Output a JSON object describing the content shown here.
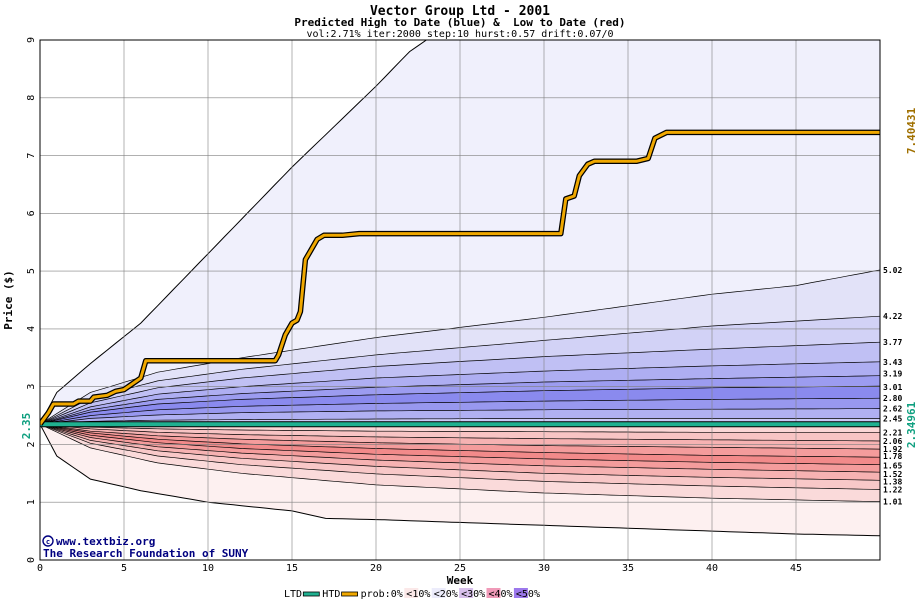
{
  "chart_data": {
    "type": "area",
    "title": "Vector Group Ltd - 2001",
    "subtitle": "Predicted High to Date (blue) &  Low to Date (red)",
    "params": "vol:2.71% iter:2000 step:10 hurst:0.57 drift:0.07/0",
    "xlabel": "Week",
    "ylabel": "Price ($)",
    "xlim": [
      0,
      50
    ],
    "ylim": [
      0,
      9
    ],
    "x_ticks": [
      0,
      5,
      10,
      15,
      20,
      25,
      30,
      35,
      40,
      45
    ],
    "y_ticks": [
      0,
      1,
      2,
      3,
      4,
      5,
      6,
      7,
      8,
      9
    ],
    "grid": true,
    "start_price": 2.35,
    "start_price_label": "2.35",
    "ltd_value_label": "2.34961",
    "htd_value_label": "7.40431",
    "envelope": {
      "upper": [
        [
          0,
          2.35
        ],
        [
          1,
          2.9
        ],
        [
          3,
          3.4
        ],
        [
          6,
          4.1
        ],
        [
          10,
          5.3
        ],
        [
          15,
          6.8
        ],
        [
          20,
          8.2
        ],
        [
          22,
          8.8
        ],
        [
          23,
          9.0
        ]
      ],
      "lower": [
        [
          0,
          2.35
        ],
        [
          1,
          1.8
        ],
        [
          3,
          1.4
        ],
        [
          6,
          1.2
        ],
        [
          10,
          1.0
        ],
        [
          15,
          0.85
        ],
        [
          17,
          0.72
        ],
        [
          20,
          0.7
        ],
        [
          25,
          0.65
        ],
        [
          30,
          0.6
        ],
        [
          35,
          0.55
        ],
        [
          40,
          0.5
        ],
        [
          45,
          0.45
        ],
        [
          50,
          0.42
        ]
      ]
    },
    "high_quantiles": [
      {
        "label": "5.02",
        "values": [
          [
            0,
            2.35
          ],
          [
            3,
            2.9
          ],
          [
            7,
            3.25
          ],
          [
            12,
            3.5
          ],
          [
            20,
            3.85
          ],
          [
            30,
            4.2
          ],
          [
            40,
            4.6
          ],
          [
            45,
            4.75
          ],
          [
            50,
            5.02
          ]
        ]
      },
      {
        "label": "4.22",
        "values": [
          [
            0,
            2.35
          ],
          [
            3,
            2.8
          ],
          [
            7,
            3.1
          ],
          [
            12,
            3.3
          ],
          [
            20,
            3.55
          ],
          [
            30,
            3.8
          ],
          [
            40,
            4.05
          ],
          [
            50,
            4.22
          ]
        ]
      },
      {
        "label": "3.77",
        "values": [
          [
            0,
            2.35
          ],
          [
            3,
            2.72
          ],
          [
            7,
            2.98
          ],
          [
            12,
            3.15
          ],
          [
            20,
            3.35
          ],
          [
            30,
            3.52
          ],
          [
            40,
            3.65
          ],
          [
            50,
            3.77
          ]
        ]
      },
      {
        "label": "3.43",
        "values": [
          [
            0,
            2.35
          ],
          [
            3,
            2.65
          ],
          [
            7,
            2.87
          ],
          [
            12,
            3.0
          ],
          [
            20,
            3.15
          ],
          [
            30,
            3.27
          ],
          [
            40,
            3.36
          ],
          [
            50,
            3.43
          ]
        ]
      },
      {
        "label": "3.19",
        "values": [
          [
            0,
            2.35
          ],
          [
            3,
            2.6
          ],
          [
            7,
            2.78
          ],
          [
            12,
            2.88
          ],
          [
            20,
            2.99
          ],
          [
            30,
            3.08
          ],
          [
            40,
            3.14
          ],
          [
            50,
            3.19
          ]
        ]
      },
      {
        "label": "3.01",
        "values": [
          [
            0,
            2.35
          ],
          [
            3,
            2.56
          ],
          [
            7,
            2.7
          ],
          [
            12,
            2.78
          ],
          [
            20,
            2.86
          ],
          [
            30,
            2.93
          ],
          [
            40,
            2.98
          ],
          [
            50,
            3.01
          ]
        ]
      },
      {
        "label": "2.80",
        "values": [
          [
            0,
            2.35
          ],
          [
            3,
            2.5
          ],
          [
            7,
            2.6
          ],
          [
            12,
            2.66
          ],
          [
            20,
            2.71
          ],
          [
            30,
            2.75
          ],
          [
            40,
            2.78
          ],
          [
            50,
            2.8
          ]
        ]
      },
      {
        "label": "2.62",
        "values": [
          [
            0,
            2.35
          ],
          [
            3,
            2.45
          ],
          [
            7,
            2.51
          ],
          [
            12,
            2.55
          ],
          [
            20,
            2.58
          ],
          [
            30,
            2.6
          ],
          [
            40,
            2.61
          ],
          [
            50,
            2.62
          ]
        ]
      },
      {
        "label": "2.45",
        "values": [
          [
            0,
            2.35
          ],
          [
            3,
            2.4
          ],
          [
            7,
            2.42
          ],
          [
            12,
            2.43
          ],
          [
            20,
            2.44
          ],
          [
            30,
            2.45
          ],
          [
            40,
            2.45
          ],
          [
            50,
            2.45
          ]
        ]
      }
    ],
    "low_quantiles": [
      {
        "label": "2.21",
        "values": [
          [
            0,
            2.35
          ],
          [
            3,
            2.3
          ],
          [
            7,
            2.27
          ],
          [
            12,
            2.25
          ],
          [
            20,
            2.23
          ],
          [
            30,
            2.22
          ],
          [
            40,
            2.21
          ],
          [
            50,
            2.21
          ]
        ]
      },
      {
        "label": "2.06",
        "values": [
          [
            0,
            2.35
          ],
          [
            3,
            2.27
          ],
          [
            7,
            2.21
          ],
          [
            12,
            2.17
          ],
          [
            20,
            2.13
          ],
          [
            30,
            2.1
          ],
          [
            40,
            2.08
          ],
          [
            50,
            2.06
          ]
        ]
      },
      {
        "label": "1.92",
        "values": [
          [
            0,
            2.35
          ],
          [
            3,
            2.23
          ],
          [
            7,
            2.15
          ],
          [
            12,
            2.09
          ],
          [
            20,
            2.03
          ],
          [
            30,
            1.98
          ],
          [
            40,
            1.95
          ],
          [
            50,
            1.92
          ]
        ]
      },
      {
        "label": "1.78",
        "values": [
          [
            0,
            2.35
          ],
          [
            3,
            2.2
          ],
          [
            7,
            2.09
          ],
          [
            12,
            2.01
          ],
          [
            20,
            1.93
          ],
          [
            30,
            1.86
          ],
          [
            40,
            1.81
          ],
          [
            50,
            1.78
          ]
        ]
      },
      {
        "label": "1.65",
        "values": [
          [
            0,
            2.35
          ],
          [
            3,
            2.16
          ],
          [
            7,
            2.03
          ],
          [
            12,
            1.93
          ],
          [
            20,
            1.83
          ],
          [
            30,
            1.75
          ],
          [
            40,
            1.69
          ],
          [
            50,
            1.65
          ]
        ]
      },
      {
        "label": "1.52",
        "values": [
          [
            0,
            2.35
          ],
          [
            3,
            2.12
          ],
          [
            7,
            1.96
          ],
          [
            12,
            1.85
          ],
          [
            20,
            1.73
          ],
          [
            30,
            1.63
          ],
          [
            40,
            1.57
          ],
          [
            50,
            1.52
          ]
        ]
      },
      {
        "label": "1.38",
        "values": [
          [
            0,
            2.35
          ],
          [
            3,
            2.07
          ],
          [
            7,
            1.89
          ],
          [
            12,
            1.76
          ],
          [
            20,
            1.62
          ],
          [
            30,
            1.5
          ],
          [
            40,
            1.43
          ],
          [
            50,
            1.38
          ]
        ]
      },
      {
        "label": "1.22",
        "values": [
          [
            0,
            2.35
          ],
          [
            3,
            2.02
          ],
          [
            7,
            1.8
          ],
          [
            12,
            1.65
          ],
          [
            20,
            1.49
          ],
          [
            30,
            1.36
          ],
          [
            40,
            1.28
          ],
          [
            50,
            1.22
          ]
        ]
      },
      {
        "label": "1.01",
        "values": [
          [
            0,
            2.35
          ],
          [
            3,
            1.94
          ],
          [
            7,
            1.68
          ],
          [
            12,
            1.5
          ],
          [
            20,
            1.3
          ],
          [
            30,
            1.16
          ],
          [
            40,
            1.07
          ],
          [
            50,
            1.01
          ]
        ]
      }
    ],
    "htd_series": [
      [
        0,
        2.35
      ],
      [
        0.5,
        2.55
      ],
      [
        0.8,
        2.7
      ],
      [
        2,
        2.7
      ],
      [
        2.3,
        2.75
      ],
      [
        3,
        2.75
      ],
      [
        3.2,
        2.82
      ],
      [
        4,
        2.85
      ],
      [
        4.5,
        2.92
      ],
      [
        5,
        2.95
      ],
      [
        5.5,
        3.05
      ],
      [
        6,
        3.15
      ],
      [
        6.3,
        3.45
      ],
      [
        8,
        3.45
      ],
      [
        9,
        3.45
      ],
      [
        14,
        3.45
      ],
      [
        14.2,
        3.55
      ],
      [
        14.6,
        3.9
      ],
      [
        15,
        4.1
      ],
      [
        15.3,
        4.15
      ],
      [
        15.5,
        4.3
      ],
      [
        15.8,
        5.2
      ],
      [
        16.1,
        5.35
      ],
      [
        16.5,
        5.55
      ],
      [
        16.9,
        5.62
      ],
      [
        18,
        5.62
      ],
      [
        19,
        5.65
      ],
      [
        31,
        5.65
      ],
      [
        31.3,
        6.25
      ],
      [
        31.8,
        6.3
      ],
      [
        32.1,
        6.65
      ],
      [
        32.6,
        6.85
      ],
      [
        33,
        6.9
      ],
      [
        35.5,
        6.9
      ],
      [
        36.2,
        6.95
      ],
      [
        36.6,
        7.3
      ],
      [
        37.3,
        7.4
      ],
      [
        50,
        7.4
      ]
    ],
    "ltd_series": [
      [
        0,
        2.34961
      ],
      [
        50,
        2.34961
      ]
    ],
    "colors": {
      "envelope": "#f0f0fc",
      "below_envelope": "#fdf0f0",
      "blue_bands": [
        "#e2e2f8",
        "#d2d2f6",
        "#c0c0f4",
        "#aeaef2",
        "#9c9cf0",
        "#8a8aee",
        "#9898ef",
        "#b0b0f2",
        "#cacaf5"
      ],
      "red_bands": [
        "#fbd6d6",
        "#f8c4c4",
        "#f6b2b2",
        "#f49c9c",
        "#f28a8a",
        "#f49c9c",
        "#f6b2b2",
        "#f8c8c8",
        "#fadada"
      ],
      "htd": "#f0a800",
      "ltd": "#20b090",
      "htd_label": "#a07000",
      "ltd_label": "#10a080",
      "watermark": "#000080",
      "grid": "#808080"
    },
    "watermark": [
      "www.textbiz.org",
      "The Research Foundation of SUNY"
    ],
    "legend": {
      "placement": "bottom",
      "items": [
        {
          "label": "LTD",
          "color": "#20b090"
        },
        {
          "label": "HTD",
          "color": "#f0a800"
        },
        {
          "label": "prob:0%",
          "color": "#ffffff"
        },
        {
          "label": "<10%",
          "color": "#fbe8e8"
        },
        {
          "label": "<20%",
          "color": "#ececfb"
        },
        {
          "label": "<30%",
          "color": "#d8c0ec"
        },
        {
          "label": "<40%",
          "color": "#f09ab8"
        },
        {
          "label": "<50%",
          "color": "#9c78ec"
        }
      ]
    }
  }
}
